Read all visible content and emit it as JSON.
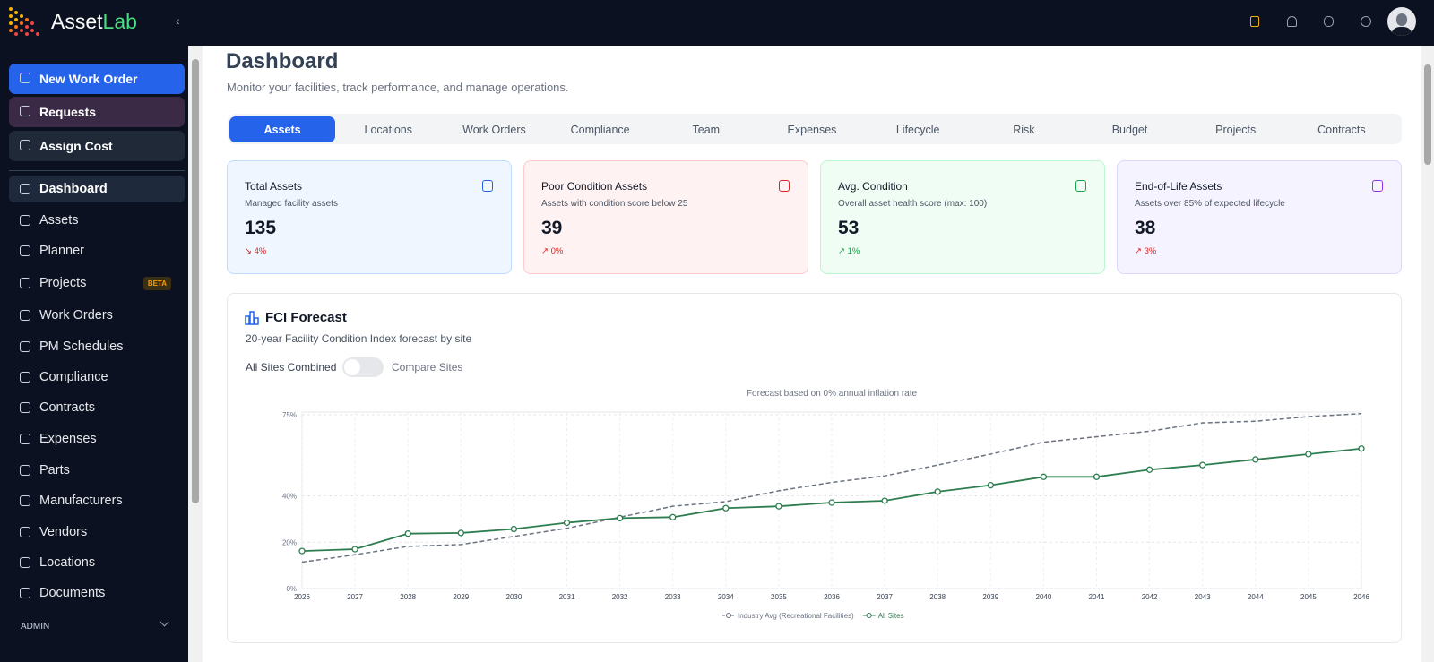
{
  "header": {
    "brand": {
      "first": "Asset",
      "second": "Lab"
    }
  },
  "sidebar": {
    "actions": [
      "New Work Order",
      "Requests",
      "Assign Cost"
    ],
    "nav": [
      "Dashboard",
      "Assets",
      "Planner",
      "Projects",
      "Work Orders",
      "PM Schedules",
      "Compliance",
      "Contracts",
      "Expenses",
      "Parts",
      "Manufacturers",
      "Vendors",
      "Locations",
      "Documents"
    ],
    "badge": "BETA",
    "section": "ADMIN"
  },
  "page": {
    "title": "Dashboard",
    "subtitle": "Monitor your facilities, track performance, and manage operations."
  },
  "tabs": [
    "Assets",
    "Locations",
    "Work Orders",
    "Compliance",
    "Team",
    "Expenses",
    "Lifecycle",
    "Risk",
    "Budget",
    "Projects",
    "Contracts"
  ],
  "cards": [
    {
      "title": "Total Assets",
      "description": "Managed facility assets",
      "value": 135,
      "change": "↘ 4%"
    },
    {
      "title": "Poor Condition Assets",
      "description": "Assets with condition score below 25",
      "value": 39,
      "change": "↗ 0%"
    },
    {
      "title": "Avg. Condition",
      "description": "Overall asset health score (max: 100)",
      "value": 53,
      "change": "↗ 1%"
    },
    {
      "title": "End-of-Life Assets",
      "description": "Assets over 85% of expected lifecycle",
      "value": 38,
      "change": "↗ 3%"
    }
  ],
  "chart_panel": {
    "title": "FCI Forecast",
    "subtitle": "20-year Facility Condition Index forecast by site",
    "toggle_left": "All Sites Combined",
    "toggle_right": "Compare Sites"
  },
  "chart_data": {
    "type": "line",
    "title": "Forecast based on 0% annual inflation rate",
    "categories": [
      "2026",
      "2027",
      "2028",
      "2029",
      "2030",
      "2031",
      "2032",
      "2033",
      "2034",
      "2035",
      "2036",
      "2037",
      "2038",
      "2039",
      "2040",
      "2041",
      "2042",
      "2043",
      "2044",
      "2045",
      "2046"
    ],
    "series": [
      {
        "name": "Industry Avg (Recreational Facilities)",
        "color": "#6b7280",
        "style": "dashed",
        "values": [
          11.4,
          14.6,
          18.2,
          19,
          22.5,
          26,
          30.8,
          35.5,
          37.5,
          42.2,
          45.8,
          48.6,
          53.3,
          58,
          63.2,
          65.5,
          67.9,
          71.5,
          72.2,
          74.2,
          75.5
        ]
      },
      {
        "name": "All Sites",
        "color": "#2e7d4f",
        "style": "solid",
        "values": [
          16.2,
          17,
          23.7,
          24,
          25.7,
          28.4,
          30.4,
          30.8,
          34.7,
          35.5,
          37.1,
          37.9,
          41.8,
          44.6,
          48.2,
          48.2,
          51.3,
          53.3,
          55.7,
          58,
          60.4
        ]
      }
    ],
    "ylim": [
      0,
      75
    ],
    "yticks": [
      {
        "value": 0,
        "label": "0%"
      },
      {
        "value": 20,
        "label": "20%"
      },
      {
        "value": 40,
        "label": "40%"
      },
      {
        "value": 75,
        "label": "75%"
      }
    ],
    "grid": true
  }
}
